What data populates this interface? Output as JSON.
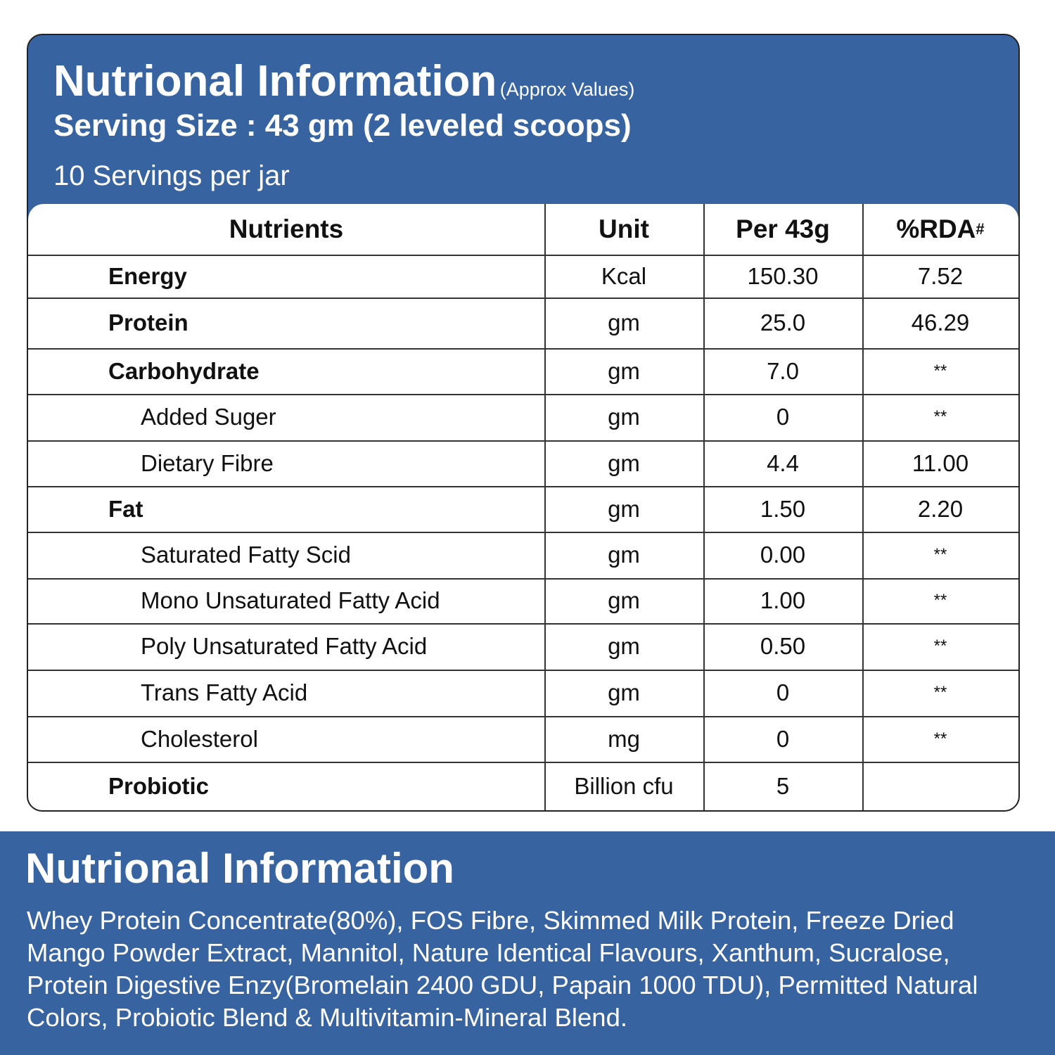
{
  "header": {
    "title": "Nutrional Information",
    "note": "(Approx Values)",
    "serving": "Serving Size : 43 gm (2 leveled scoops)",
    "servings": "10 Servings per jar"
  },
  "table": {
    "columns": [
      "Nutrients",
      "Unit",
      "Per 43g",
      {
        "text": "%RDA",
        "sup": "#"
      }
    ],
    "rows": [
      {
        "name": "Energy",
        "unit": "Kcal",
        "per": "150.30",
        "rda": "7.52"
      },
      {
        "name": "Protein",
        "unit": "gm",
        "per": "25.0",
        "rda": "46.29"
      },
      {
        "name": "Carbohydrate",
        "unit": "gm",
        "per": "7.0",
        "rda": "**",
        "children": [
          {
            "name": "Added Suger",
            "unit": "gm",
            "per": "0",
            "rda": "**"
          },
          {
            "name": "Dietary Fibre",
            "unit": "gm",
            "per": "4.4",
            "rda": "11.00"
          }
        ]
      },
      {
        "name": "Fat",
        "unit": "gm",
        "per": "1.50",
        "rda": "2.20",
        "children": [
          {
            "name": "Saturated Fatty Scid",
            "unit": "gm",
            "per": "0.00",
            "rda": "**"
          },
          {
            "name": "Mono Unsaturated Fatty Acid",
            "unit": "gm",
            "per": "1.00",
            "rda": "**"
          },
          {
            "name": "Poly Unsaturated Fatty Acid",
            "unit": "gm",
            "per": "0.50",
            "rda": "**"
          },
          {
            "name": "Trans Fatty Acid",
            "unit": "gm",
            "per": "0",
            "rda": "**"
          },
          {
            "name": "Cholesterol",
            "unit": "mg",
            "per": "0",
            "rda": "**"
          }
        ]
      },
      {
        "name": "Probiotic",
        "unit": "Billion cfu",
        "per": "5"
      }
    ]
  },
  "footer": {
    "title": "Nutrional Information",
    "text": "Whey Protein Concentrate(80%), FOS Fibre, Skimmed Milk Protein, Freeze Dried Mango Powder Extract, Mannitol, Nature Identical Flavours, Xanthum, Sucralose, Protein Digestive Enzy(Bromelain 2400 GDU, Papain 1000 TDU), Permitted Natural Colors, Probiotic Blend & Multivitamin-Mineral Blend."
  }
}
